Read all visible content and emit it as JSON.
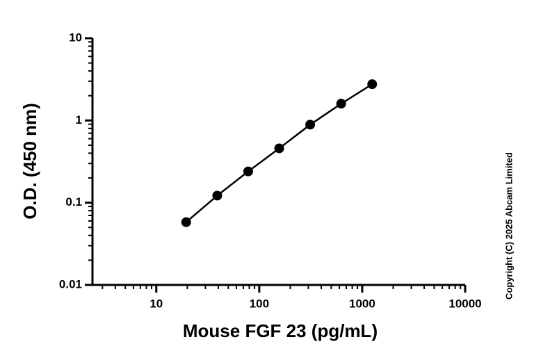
{
  "chart_data": {
    "type": "scatter",
    "x_label": "Mouse FGF 23 (pg/mL)",
    "y_label": "O.D. (450 nm)",
    "annotation": "Copyright (C) 2025 Abcam Limited",
    "x": [
      19.5,
      39.1,
      78.1,
      156.25,
      312.5,
      625,
      1250
    ],
    "series": [
      {
        "color": "#000000",
        "values": [
          0.058,
          0.122,
          0.24,
          0.458,
          0.89,
          1.6,
          2.76
        ]
      }
    ],
    "xlim": [
      2.4,
      10000
    ],
    "xticks": [
      10,
      100,
      1000,
      10000
    ],
    "ylim": [
      0.01,
      10
    ],
    "yticks": [
      0.01,
      0.1,
      1,
      10
    ],
    "xscale": "log",
    "yscale": "log",
    "grid": false
  }
}
